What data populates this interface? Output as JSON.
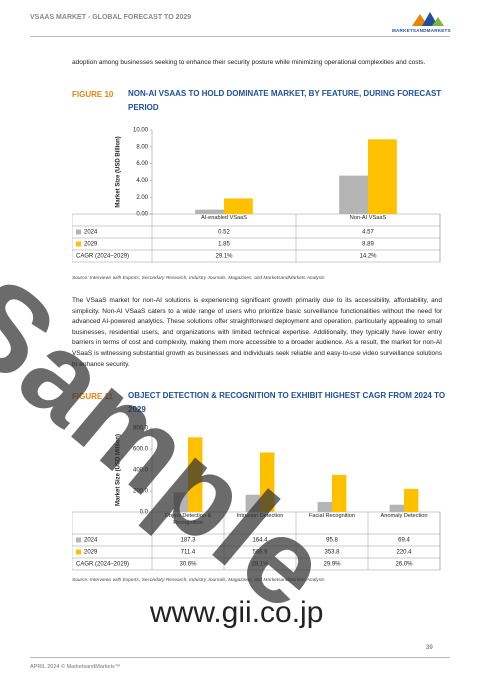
{
  "header": {
    "title": "VSAAS MARKET - GLOBAL FORECAST TO 2029",
    "logo": "MARKETSANDMARKETS"
  },
  "paragraphs": [
    "adoption among businesses seeking to enhance their security posture while minimizing operational complexities and costs.",
    "The VSaaS market for non-AI solutions is experiencing significant growth primarily due to its accessibility, affordability, and simplicity. Non-AI VSaaS caters to a wide range of users who prioritize basic surveillance functionalities without the need for advanced AI-powered analytics. These solutions offer straightforward deployment and operation, particularly appealing to small businesses, residential users, and organizations with limited technical expertise. Additionally, they typically have lower entry barriers in terms of cost and complexity, making them more accessible to a broader audience. As a result, the market for non-AI VSaaS is witnessing substantial growth as businesses and individuals seek reliable and easy-to-use video surveillance solutions to enhance security."
  ],
  "chart_data": [
    {
      "type": "bar",
      "figure_label": "FIGURE 10",
      "title": "NON-AI VSAAS TO HOLD DOMINATE MARKET, BY FEATURE, DURING FORECAST PERIOD",
      "y_label": "Market Size (USD Billion)",
      "categories": [
        "AI-enabled VSaaS",
        "Non-AI VSaaS"
      ],
      "series": [
        {
          "name": "2024",
          "color": "#b4b4b4",
          "values": [
            0.52,
            4.57
          ]
        },
        {
          "name": "2029",
          "color": "#ffc000",
          "values": [
            1.85,
            8.89
          ]
        }
      ],
      "ylim": [
        0,
        10
      ],
      "yticks": [
        {
          "value": 0,
          "label": "0.00"
        },
        {
          "value": 2,
          "label": "2.00"
        },
        {
          "value": 4,
          "label": "4.00"
        },
        {
          "value": 6,
          "label": "6.00"
        },
        {
          "value": 8,
          "label": "8.00"
        },
        {
          "value": 10,
          "label": "10.00"
        }
      ],
      "cagr_row": {
        "label": "CAGR (2024–2029)",
        "cells": [
          "29.1%",
          "14.2%"
        ]
      },
      "source": "Source: Interviews with Experts, Secondary Research, Industry Journals, Magazines, and MarketsandMarkets Analysis"
    },
    {
      "type": "bar",
      "figure_label": "FIGURE 11",
      "title": "OBJECT DETECTION & RECOGNITION TO EXHIBIT HIGHEST CAGR FROM 2024 TO 2029",
      "y_label": "Market Size (USD Million)",
      "categories": [
        "Object Detection & Recognition",
        "Intrusion Detection",
        "Facial Recognition",
        "Anomaly Detection"
      ],
      "series": [
        {
          "name": "2024",
          "color": "#b4b4b4",
          "values": [
            187.3,
            164.4,
            95.8,
            69.4
          ]
        },
        {
          "name": "2029",
          "color": "#ffc000",
          "values": [
            711.4,
            566.9,
            353.8,
            220.4
          ]
        }
      ],
      "ylim": [
        0,
        800
      ],
      "yticks": [
        {
          "value": 0,
          "label": "0.0"
        },
        {
          "value": 200,
          "label": "200.0"
        },
        {
          "value": 400,
          "label": "400.0"
        },
        {
          "value": 600,
          "label": "600.0"
        },
        {
          "value": 800,
          "label": "800.0"
        }
      ],
      "cagr_row": {
        "label": "CAGR (2024–2029)",
        "cells": [
          "30.6%",
          "28.1%",
          "29.9%",
          "26.0%"
        ]
      },
      "source": "Source: Interviews with Experts, Secondary Research, Industry Journals, Magazines, and MarketsandMarkets Analysis"
    }
  ],
  "watermarks": [
    "Sample",
    "www.gii.co.jp"
  ],
  "footer": {
    "text": "APRIL 2024 © MarketsandMarkets™",
    "page": "39"
  }
}
